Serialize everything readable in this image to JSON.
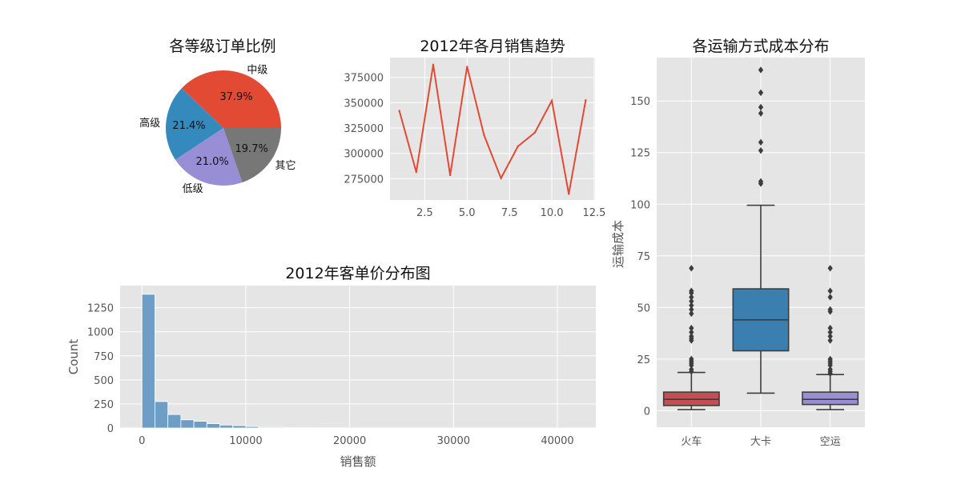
{
  "chart_data": [
    {
      "type": "pie",
      "title": "各等级订单比例",
      "labels": [
        "中级",
        "高级",
        "低级",
        "其它"
      ],
      "values": [
        37.9,
        21.4,
        21.0,
        19.7
      ],
      "pct_labels": [
        "37.9%",
        "21.4%",
        "21.0%",
        "19.7%"
      ],
      "colors": [
        "#E24A33",
        "#348ABD",
        "#988ED5",
        "#777777"
      ]
    },
    {
      "type": "line",
      "title": "2012年各月销售趋势",
      "xlabel": "",
      "ylabel": "",
      "x": [
        1,
        2,
        3,
        4,
        5,
        6,
        7,
        8,
        9,
        10,
        11,
        12
      ],
      "y": [
        342000,
        281500,
        387500,
        278500,
        385500,
        318000,
        275500,
        307000,
        320500,
        352000,
        260000,
        352500
      ],
      "xlim": [
        0.45,
        12.55
      ],
      "ylim": [
        254000,
        394500
      ],
      "xticks": [
        2.5,
        5.0,
        7.5,
        10.0,
        12.5
      ],
      "xtick_labels": [
        "2.5",
        "5.0",
        "7.5",
        "10.0",
        "12.5"
      ],
      "yticks": [
        275000,
        300000,
        325000,
        350000,
        375000
      ],
      "ytick_labels": [
        "275000",
        "300000",
        "325000",
        "350000",
        "375000"
      ],
      "color": "#E24A33"
    },
    {
      "type": "bar",
      "title": "2012年客单价分布图",
      "xlabel": "销售额",
      "ylabel": "Count",
      "bin_width": 1250,
      "bin_start": 0,
      "counts": [
        1390,
        275,
        140,
        85,
        70,
        45,
        30,
        25,
        15,
        8,
        8,
        4,
        3,
        2,
        2,
        2,
        1,
        1,
        1,
        1,
        1,
        1,
        0,
        1,
        0,
        0,
        0,
        0,
        0,
        0,
        0,
        1,
        0,
        0
      ],
      "xlim": [
        -2100,
        43700
      ],
      "ylim": [
        0,
        1480
      ],
      "xticks": [
        0,
        10000,
        20000,
        30000,
        40000
      ],
      "xtick_labels": [
        "0",
        "10000",
        "20000",
        "30000",
        "40000"
      ],
      "yticks": [
        0,
        250,
        500,
        750,
        1000,
        1250
      ],
      "ytick_labels": [
        "0",
        "250",
        "500",
        "750",
        "1000",
        "1250"
      ],
      "color": "#6E9DC6"
    },
    {
      "type": "box",
      "title": "各运输方式成本分布",
      "xlabel": "",
      "ylabel": "运输成本",
      "categories": [
        "火车",
        "大卡",
        "空运"
      ],
      "ylim": [
        -8,
        171
      ],
      "yticks": [
        0,
        25,
        50,
        75,
        100,
        125,
        150
      ],
      "ytick_labels": [
        "0",
        "25",
        "50",
        "75",
        "100",
        "125",
        "150"
      ],
      "colors": [
        "#C44E52",
        "#3A7FB0",
        "#9A8FD3"
      ],
      "boxes": [
        {
          "whislo": 0.5,
          "q1": 2.5,
          "med": 5.5,
          "q3": 9.0,
          "whishi": 18.5,
          "fliers": [
            19,
            20,
            22,
            23,
            24,
            25,
            34,
            35,
            36,
            38,
            40,
            47,
            49,
            51,
            53,
            55,
            57,
            58,
            69
          ]
        },
        {
          "whislo": 8.5,
          "q1": 29,
          "med": 44,
          "q3": 59,
          "whishi": 99.5,
          "fliers": [
            110,
            111,
            126,
            130,
            144,
            147,
            154,
            165
          ]
        },
        {
          "whislo": 0.5,
          "q1": 3.0,
          "med": 5.5,
          "q3": 9.0,
          "whishi": 17.5,
          "fliers": [
            18,
            19,
            20,
            22,
            23,
            24,
            25,
            34,
            36,
            38,
            40,
            48,
            49,
            55,
            58,
            69
          ]
        }
      ]
    }
  ]
}
